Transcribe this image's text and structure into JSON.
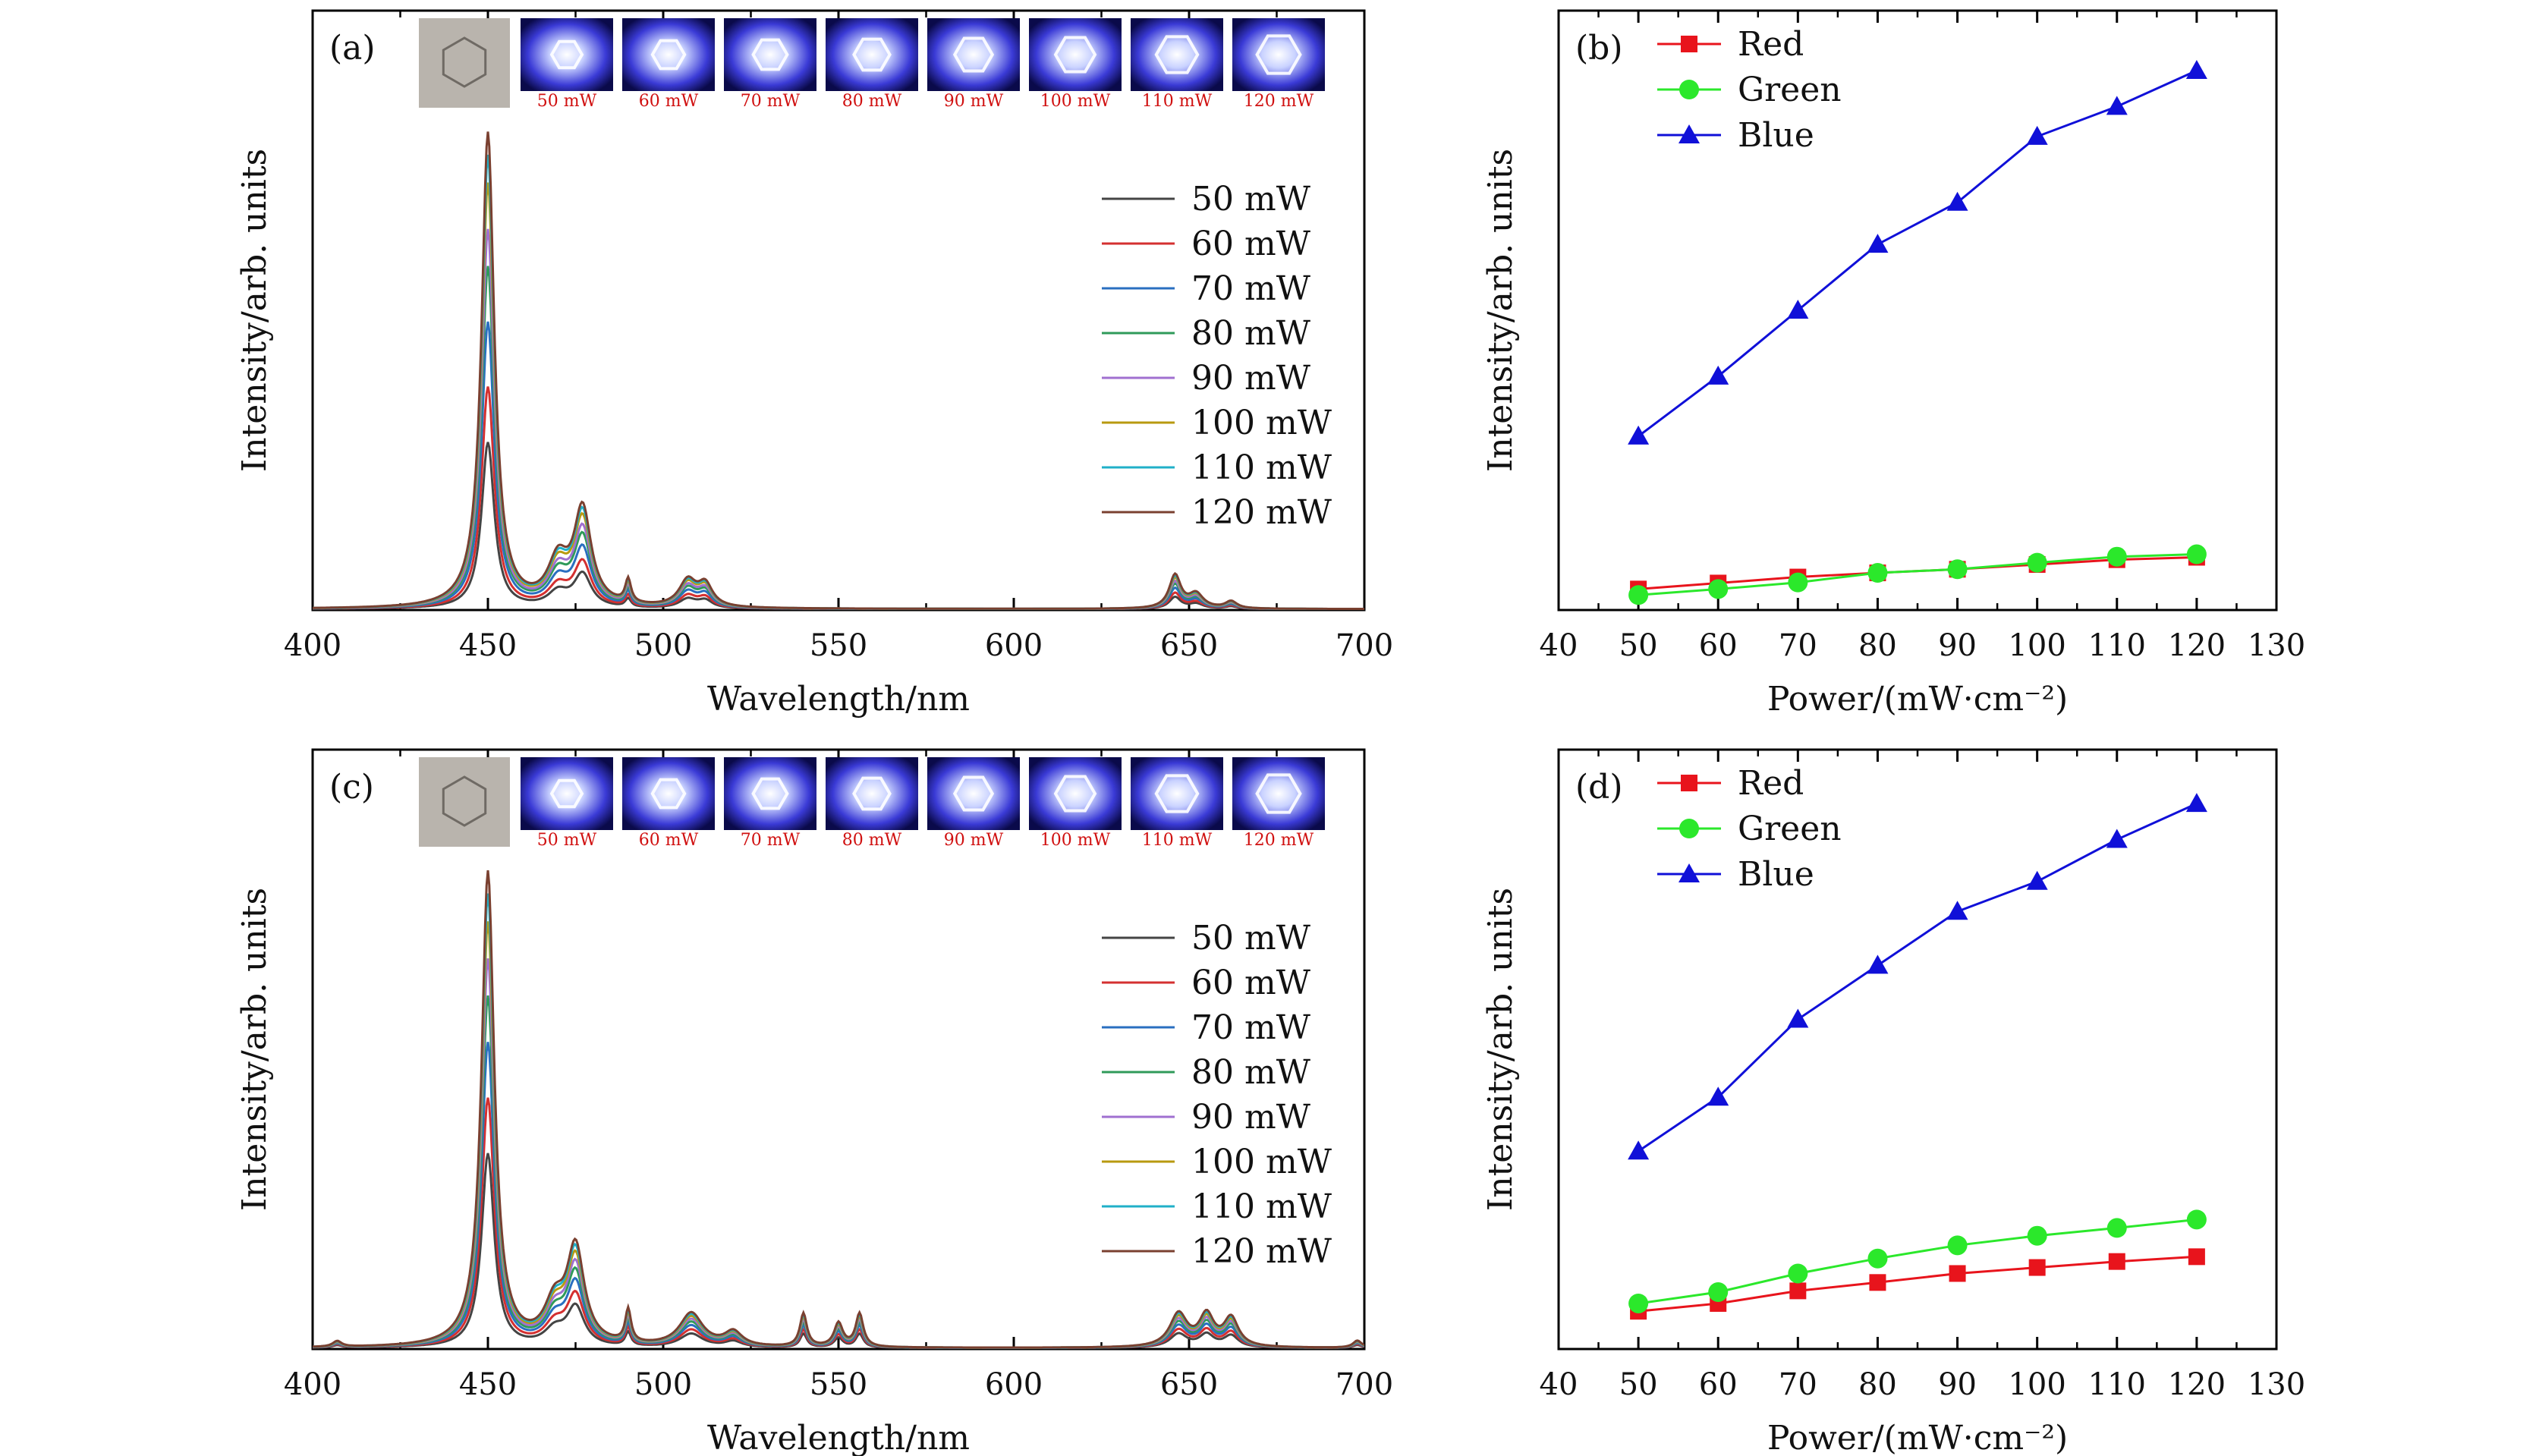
{
  "chart_data": [
    {
      "type": "line",
      "panel": "(a)",
      "xlabel": "Wavelength/nm",
      "ylabel": "Intensity/arb. units",
      "xlim": [
        400,
        700
      ],
      "xticks": [
        "400",
        "450",
        "500",
        "550",
        "600",
        "650",
        "700"
      ],
      "ylim": [
        0,
        1.3
      ],
      "legend": "right",
      "inset_labels": [
        "50 mW",
        "60 mW",
        "70 mW",
        "80 mW",
        "90 mW",
        "100 mW",
        "110 mW",
        "120 mW"
      ],
      "series": [
        {
          "name": "50 mW",
          "color": "#444444",
          "scale": 0.36
        },
        {
          "name": "60 mW",
          "color": "#d43030",
          "scale": 0.48
        },
        {
          "name": "70 mW",
          "color": "#2a6fc0",
          "scale": 0.62
        },
        {
          "name": "80 mW",
          "color": "#2f9a5a",
          "scale": 0.74
        },
        {
          "name": "90 mW",
          "color": "#a070d0",
          "scale": 0.82
        },
        {
          "name": "100 mW",
          "color": "#b89a10",
          "scale": 0.92
        },
        {
          "name": "110 mW",
          "color": "#20b0c8",
          "scale": 0.98
        },
        {
          "name": "120 mW",
          "color": "#7a4030",
          "scale": 1.03
        }
      ],
      "peaks": [
        {
          "center": 450,
          "width": 2.2,
          "height": 1.0
        },
        {
          "center": 477,
          "width": 3.0,
          "height": 0.2
        },
        {
          "center": 470,
          "width": 3.5,
          "height": 0.09
        },
        {
          "center": 490,
          "width": 1.0,
          "height": 0.05
        },
        {
          "center": 507,
          "width": 3.0,
          "height": 0.055
        },
        {
          "center": 512,
          "width": 2.5,
          "height": 0.045
        },
        {
          "center": 646,
          "width": 2.0,
          "height": 0.07
        },
        {
          "center": 652,
          "width": 2.5,
          "height": 0.03
        },
        {
          "center": 662,
          "width": 2.0,
          "height": 0.015
        }
      ]
    },
    {
      "type": "line",
      "panel": "(b)",
      "xlabel": "Power/(mW·cm⁻²)",
      "ylabel": "Intensity/arb. units",
      "xlim": [
        40,
        130
      ],
      "xticks": [
        "40",
        "50",
        "60",
        "70",
        "80",
        "90",
        "100",
        "110",
        "120",
        "130"
      ],
      "ylim": [
        0,
        100
      ],
      "legend": "top-left",
      "x": [
        50,
        60,
        70,
        80,
        90,
        100,
        110,
        120
      ],
      "series": [
        {
          "name": "Red",
          "marker": "square",
          "color": "#e8141c",
          "values": [
            3.5,
            4.5,
            5.5,
            6.2,
            6.8,
            7.6,
            8.4,
            8.8
          ]
        },
        {
          "name": "Green",
          "marker": "circle",
          "color": "#2be82b",
          "values": [
            2.5,
            3.5,
            4.6,
            6.2,
            6.8,
            7.9,
            8.9,
            9.3
          ]
        },
        {
          "name": "Blue",
          "marker": "triangle",
          "color": "#1010d8",
          "values": [
            29,
            39,
            50,
            61,
            68,
            79,
            84,
            90
          ]
        }
      ]
    },
    {
      "type": "line",
      "panel": "(c)",
      "xlabel": "Wavelength/nm",
      "ylabel": "Intensity/arb. units",
      "xlim": [
        400,
        700
      ],
      "xticks": [
        "400",
        "450",
        "500",
        "550",
        "600",
        "650",
        "700"
      ],
      "ylim": [
        0,
        1.3
      ],
      "legend": "right",
      "inset_labels": [
        "50 mW",
        "60 mW",
        "70 mW",
        "80 mW",
        "90 mW",
        "100 mW",
        "110 mW",
        "120 mW"
      ],
      "series": [
        {
          "name": "50 mW",
          "color": "#444444",
          "scale": 0.42
        },
        {
          "name": "60 mW",
          "color": "#d43030",
          "scale": 0.54
        },
        {
          "name": "70 mW",
          "color": "#2a6fc0",
          "scale": 0.66
        },
        {
          "name": "80 mW",
          "color": "#2f9a5a",
          "scale": 0.76
        },
        {
          "name": "90 mW",
          "color": "#a070d0",
          "scale": 0.84
        },
        {
          "name": "100 mW",
          "color": "#b89a10",
          "scale": 0.92
        },
        {
          "name": "110 mW",
          "color": "#20b0c8",
          "scale": 0.98
        },
        {
          "name": "120 mW",
          "color": "#7a4030",
          "scale": 1.03
        }
      ],
      "peaks": [
        {
          "center": 450,
          "width": 2.2,
          "height": 1.0
        },
        {
          "center": 475,
          "width": 3.0,
          "height": 0.2
        },
        {
          "center": 469,
          "width": 3.5,
          "height": 0.08
        },
        {
          "center": 490,
          "width": 1.0,
          "height": 0.07
        },
        {
          "center": 508,
          "width": 4.0,
          "height": 0.07
        },
        {
          "center": 520,
          "width": 3.0,
          "height": 0.03
        },
        {
          "center": 540,
          "width": 1.2,
          "height": 0.07
        },
        {
          "center": 550,
          "width": 1.5,
          "height": 0.05
        },
        {
          "center": 556,
          "width": 1.3,
          "height": 0.07
        },
        {
          "center": 647,
          "width": 3.0,
          "height": 0.07
        },
        {
          "center": 655,
          "width": 2.5,
          "height": 0.065
        },
        {
          "center": 662,
          "width": 2.5,
          "height": 0.06
        },
        {
          "center": 407,
          "width": 1.5,
          "height": 0.012
        },
        {
          "center": 698,
          "width": 1.5,
          "height": 0.015
        }
      ]
    },
    {
      "type": "line",
      "panel": "(d)",
      "xlabel": "Power/(mW·cm⁻²)",
      "ylabel": "Intensity/arb. units",
      "xlim": [
        40,
        130
      ],
      "xticks": [
        "40",
        "50",
        "60",
        "70",
        "80",
        "90",
        "100",
        "110",
        "120",
        "130"
      ],
      "ylim": [
        0,
        100
      ],
      "legend": "top-left",
      "x": [
        50,
        60,
        70,
        80,
        90,
        100,
        110,
        120
      ],
      "series": [
        {
          "name": "Red",
          "marker": "square",
          "color": "#e8141c",
          "values": [
            6.3,
            7.6,
            9.7,
            11.1,
            12.6,
            13.6,
            14.6,
            15.4
          ]
        },
        {
          "name": "Green",
          "marker": "circle",
          "color": "#2be82b",
          "values": [
            7.6,
            9.5,
            12.6,
            15.1,
            17.3,
            18.9,
            20.2,
            21.6
          ]
        },
        {
          "name": "Blue",
          "marker": "triangle",
          "color": "#1010d8",
          "values": [
            33,
            42,
            55,
            64,
            73,
            78,
            85,
            91
          ]
        }
      ]
    }
  ]
}
